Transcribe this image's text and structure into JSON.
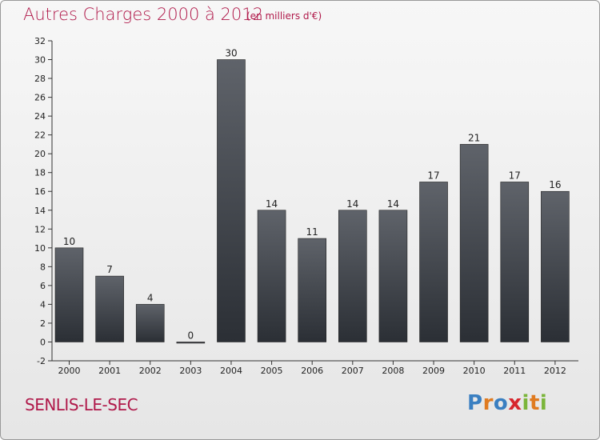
{
  "title": "Autres Charges 2000 à 2012",
  "subtitle": "(en milliers d'€)",
  "location": "SENLIS-LE-SEC",
  "logo": {
    "text": "Proxiti",
    "letters": [
      {
        "ch": "P",
        "color": "#3a7fc1"
      },
      {
        "ch": "r",
        "color": "#e07b20"
      },
      {
        "ch": "o",
        "color": "#3a7fc1"
      },
      {
        "ch": "x",
        "color": "#d7262d"
      },
      {
        "ch": "i",
        "color": "#7bb53a"
      },
      {
        "ch": "t",
        "color": "#e07b20"
      },
      {
        "ch": "i",
        "color": "#7bb53a"
      }
    ]
  },
  "colors": {
    "accent": "#b0194a",
    "bar_top": "#5f636a",
    "bar_bottom": "#2b2f35"
  },
  "chart_data": {
    "type": "bar",
    "categories": [
      "2000",
      "2001",
      "2002",
      "2003",
      "2004",
      "2005",
      "2006",
      "2007",
      "2008",
      "2009",
      "2010",
      "2011",
      "2012"
    ],
    "values": [
      10,
      7,
      4,
      0,
      30,
      14,
      11,
      14,
      14,
      17,
      21,
      17,
      16
    ],
    "ylim": [
      -2,
      32
    ],
    "yticks": [
      -2,
      0,
      2,
      4,
      6,
      8,
      10,
      12,
      14,
      16,
      18,
      20,
      22,
      24,
      26,
      28,
      30,
      32
    ],
    "grid": false,
    "legend": "none"
  }
}
